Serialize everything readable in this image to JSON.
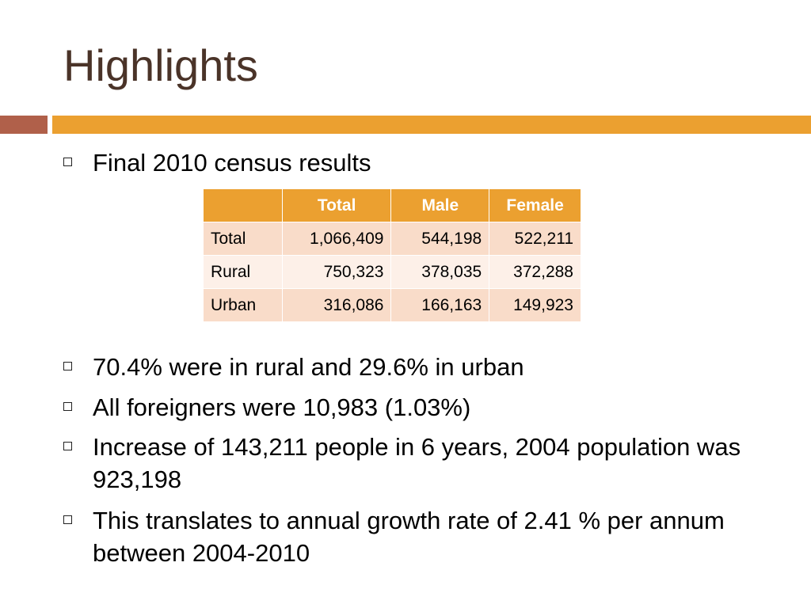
{
  "slide": {
    "title": "Highlights",
    "colors": {
      "title": "#4a3328",
      "accent_bar_left": "#b0604a",
      "accent_bar_right": "#eba030",
      "table_header": "#eba030",
      "table_row_dark": "#f9dcc9",
      "table_row_light": "#fdf0e8"
    },
    "bullet_icon": "hollow-square-bullet-icon",
    "bullets": [
      "Final 2010 census results",
      "70.4% were in rural and 29.6% in urban",
      "All foreigners were 10,983 (1.03%)",
      "Increase of 143,211 people in 6 years, 2004 population was 923,198",
      "This translates to annual growth rate of 2.41 % per annum between 2004-2010"
    ]
  },
  "table": {
    "headers": [
      "",
      "Total",
      "Male",
      "Female"
    ],
    "rows": [
      {
        "label": "Total",
        "total": "1,066,409",
        "male": "544,198",
        "female": "522,211"
      },
      {
        "label": "Rural",
        "total": "750,323",
        "male": "378,035",
        "female": "372,288"
      },
      {
        "label": "Urban",
        "total": "316,086",
        "male": "166,163",
        "female": "149,923"
      }
    ]
  }
}
